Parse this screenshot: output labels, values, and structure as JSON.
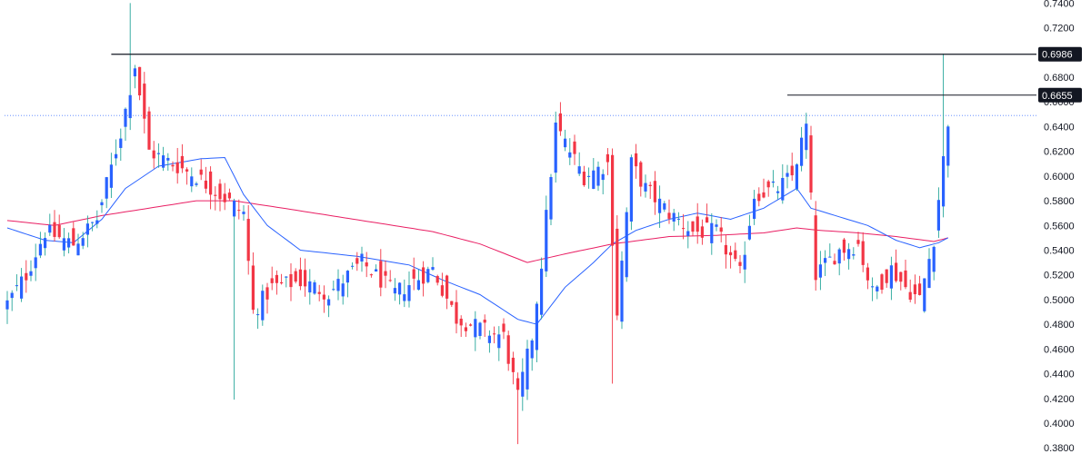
{
  "chart_data": {
    "type": "candlestick",
    "y_axis": {
      "position": "right",
      "ylim": [
        0.375,
        0.7425
      ],
      "ticks": [
        0.74,
        0.72,
        0.7,
        0.68,
        0.66,
        0.64,
        0.62,
        0.6,
        0.58,
        0.56,
        0.54,
        0.52,
        0.5,
        0.48,
        0.46,
        0.44,
        0.42,
        0.4,
        0.38
      ],
      "tick_labels": [
        "0.7400",
        "0.7200",
        "0.7000",
        "0.6800",
        "0.6600",
        "0.6400",
        "0.6200",
        "0.6000",
        "0.5800",
        "0.5600",
        "0.5400",
        "0.5200",
        "0.5000",
        "0.4800",
        "0.4600",
        "0.4400",
        "0.4200",
        "0.4000",
        "0.3800"
      ]
    },
    "bar_count": 200,
    "colors": {
      "up": "#2962ff",
      "down": "#f23645",
      "wick_up": "#26a69a",
      "wick_down": "#f23645",
      "ma_fast": "#2962ff",
      "ma_slow": "#e91e63",
      "horizontal_line": "#131722",
      "price_line": "#2962ff"
    },
    "close_path": [
      [
        0,
        0.497
      ],
      [
        4,
        0.52
      ],
      [
        8,
        0.555
      ],
      [
        14,
        0.545
      ],
      [
        19,
        0.565
      ],
      [
        24,
        0.635
      ],
      [
        27,
        0.69
      ],
      [
        30,
        0.62
      ],
      [
        35,
        0.61
      ],
      [
        40,
        0.6
      ],
      [
        45,
        0.585
      ],
      [
        50,
        0.57
      ],
      [
        52,
        0.49
      ],
      [
        56,
        0.51
      ],
      [
        62,
        0.515
      ],
      [
        68,
        0.505
      ],
      [
        75,
        0.53
      ],
      [
        82,
        0.505
      ],
      [
        90,
        0.525
      ],
      [
        95,
        0.485
      ],
      [
        101,
        0.475
      ],
      [
        105,
        0.47
      ],
      [
        108,
        0.42
      ],
      [
        111,
        0.47
      ],
      [
        113,
        0.53
      ],
      [
        116,
        0.64
      ],
      [
        122,
        0.6
      ],
      [
        127,
        0.61
      ],
      [
        129,
        0.49
      ],
      [
        132,
        0.61
      ],
      [
        135,
        0.59
      ],
      [
        140,
        0.57
      ],
      [
        145,
        0.555
      ],
      [
        150,
        0.555
      ],
      [
        155,
        0.52
      ],
      [
        158,
        0.585
      ],
      [
        163,
        0.59
      ],
      [
        166,
        0.6
      ],
      [
        169,
        0.64
      ],
      [
        171,
        0.52
      ],
      [
        176,
        0.54
      ],
      [
        180,
        0.545
      ],
      [
        183,
        0.505
      ],
      [
        187,
        0.525
      ],
      [
        190,
        0.51
      ],
      [
        193,
        0.5
      ],
      [
        196,
        0.55
      ],
      [
        199,
        0.645
      ]
    ],
    "ma_fast": [
      [
        0,
        0.558
      ],
      [
        8,
        0.548
      ],
      [
        14,
        0.546
      ],
      [
        20,
        0.565
      ],
      [
        25,
        0.59
      ],
      [
        32,
        0.608
      ],
      [
        41,
        0.614
      ],
      [
        46,
        0.615
      ],
      [
        50,
        0.585
      ],
      [
        55,
        0.56
      ],
      [
        62,
        0.54
      ],
      [
        74,
        0.535
      ],
      [
        85,
        0.528
      ],
      [
        92,
        0.516
      ],
      [
        100,
        0.504
      ],
      [
        108,
        0.484
      ],
      [
        112,
        0.48
      ],
      [
        118,
        0.51
      ],
      [
        124,
        0.53
      ],
      [
        128,
        0.545
      ],
      [
        133,
        0.556
      ],
      [
        140,
        0.565
      ],
      [
        146,
        0.57
      ],
      [
        153,
        0.565
      ],
      [
        160,
        0.574
      ],
      [
        167,
        0.59
      ],
      [
        170,
        0.574
      ],
      [
        176,
        0.567
      ],
      [
        182,
        0.56
      ],
      [
        188,
        0.548
      ],
      [
        193,
        0.542
      ],
      [
        197,
        0.546
      ],
      [
        199,
        0.55
      ]
    ],
    "ma_slow": [
      [
        0,
        0.564
      ],
      [
        10,
        0.56
      ],
      [
        20,
        0.568
      ],
      [
        30,
        0.574
      ],
      [
        40,
        0.58
      ],
      [
        48,
        0.58
      ],
      [
        60,
        0.573
      ],
      [
        75,
        0.564
      ],
      [
        90,
        0.555
      ],
      [
        100,
        0.545
      ],
      [
        110,
        0.53
      ],
      [
        118,
        0.537
      ],
      [
        128,
        0.545
      ],
      [
        140,
        0.551
      ],
      [
        150,
        0.552
      ],
      [
        160,
        0.554
      ],
      [
        167,
        0.558
      ],
      [
        172,
        0.556
      ],
      [
        180,
        0.554
      ],
      [
        188,
        0.551
      ],
      [
        196,
        0.547
      ],
      [
        199,
        0.55
      ]
    ],
    "spikes": [
      {
        "bar": 108,
        "low": 0.383
      },
      {
        "bar": 48,
        "low": 0.419
      },
      {
        "bar": 128,
        "low": 0.432
      },
      {
        "bar": 26,
        "high": 0.74
      },
      {
        "bar": 198,
        "high": 0.699
      }
    ],
    "horizontal_lines": [
      {
        "value": 0.6986,
        "label": "0.6986",
        "from_bar": 22
      },
      {
        "value": 0.6655,
        "label": "0.6655",
        "from_bar": 165
      }
    ],
    "last_price": 0.649
  }
}
